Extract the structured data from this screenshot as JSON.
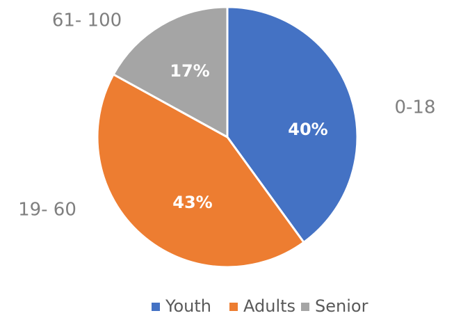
{
  "chart_data": {
    "type": "pie",
    "categories": [
      "Youth",
      "Adults",
      "Senior"
    ],
    "values": [
      40,
      43,
      17
    ],
    "value_labels": [
      "40%",
      "43%",
      "17%"
    ],
    "outer_labels": [
      "0-18",
      "19- 60",
      "61- 100"
    ],
    "colors": [
      "#4472c4",
      "#ed7d31",
      "#a5a5a5"
    ],
    "legend": "bottom"
  }
}
